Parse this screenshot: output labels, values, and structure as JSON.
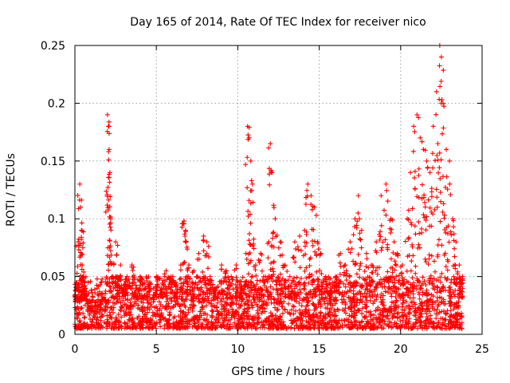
{
  "chart_data": {
    "type": "scatter",
    "title": "Day 165 of 2014, Rate Of TEC Index for receiver nico",
    "xlabel": "GPS time / hours",
    "ylabel": "ROTI / TECUs",
    "xlim": [
      0,
      25
    ],
    "ylim": [
      0,
      0.25
    ],
    "x_ticks": [
      0,
      5,
      10,
      15,
      20,
      25
    ],
    "x_tick_labels": [
      "0",
      "5",
      "10",
      "15",
      "20",
      "25"
    ],
    "y_ticks": [
      0,
      0.05,
      0.1,
      0.15,
      0.2,
      0.25
    ],
    "y_tick_labels": [
      "0",
      "0.05",
      "0.1",
      "0.15",
      "0.2",
      "0.25"
    ],
    "grid": true,
    "marker": "plus",
    "color": "#ff0000",
    "series": [
      {
        "name": "ROTI",
        "x": [
          0.1,
          0.2,
          0.3,
          0.35,
          0.4,
          0.45,
          0.5,
          0.6,
          0.8,
          1.0,
          1.2,
          1.5,
          1.8,
          2.0,
          2.05,
          2.1,
          2.15,
          2.2,
          2.3,
          2.5,
          2.6,
          2.8,
          3.0,
          3.2,
          3.5,
          3.8,
          4.0,
          4.3,
          4.6,
          5.0,
          5.3,
          5.6,
          5.9,
          6.2,
          6.5,
          6.7,
          6.8,
          7.0,
          7.3,
          7.6,
          7.9,
          8.1,
          8.3,
          8.6,
          9.0,
          9.3,
          9.6,
          9.9,
          10.2,
          10.5,
          10.6,
          10.7,
          10.8,
          10.9,
          11.1,
          11.4,
          11.7,
          11.9,
          12.0,
          12.1,
          12.3,
          12.6,
          12.9,
          13.2,
          13.5,
          13.8,
          14.1,
          14.3,
          14.5,
          14.7,
          14.9,
          15.1,
          15.4,
          15.7,
          16.0,
          16.3,
          16.6,
          16.9,
          17.2,
          17.4,
          17.6,
          17.9,
          18.2,
          18.5,
          18.8,
          19.1,
          19.4,
          19.6,
          19.8,
          20.1,
          20.4,
          20.6,
          20.8,
          21.0,
          21.2,
          21.4,
          21.6,
          21.8,
          22.0,
          22.2,
          22.4,
          22.5,
          22.6,
          22.8,
          23.0,
          23.2,
          23.4,
          23.6,
          23.8
        ],
        "y": [
          0.04,
          0.08,
          0.13,
          0.11,
          0.09,
          0.06,
          0.05,
          0.04,
          0.02,
          0.02,
          0.015,
          0.02,
          0.03,
          0.19,
          0.18,
          0.16,
          0.14,
          0.1,
          0.05,
          0.08,
          0.05,
          0.06,
          0.04,
          0.05,
          0.06,
          0.04,
          0.05,
          0.04,
          0.045,
          0.05,
          0.04,
          0.055,
          0.05,
          0.045,
          0.06,
          0.098,
          0.09,
          0.06,
          0.055,
          0.07,
          0.085,
          0.08,
          0.05,
          0.04,
          0.06,
          0.055,
          0.05,
          0.06,
          0.04,
          0.07,
          0.18,
          0.17,
          0.15,
          0.13,
          0.06,
          0.07,
          0.05,
          0.08,
          0.165,
          0.14,
          0.1,
          0.08,
          0.06,
          0.05,
          0.08,
          0.085,
          0.09,
          0.13,
          0.12,
          0.11,
          0.08,
          0.07,
          0.05,
          0.04,
          0.05,
          0.07,
          0.06,
          0.08,
          0.1,
          0.12,
          0.09,
          0.07,
          0.06,
          0.08,
          0.12,
          0.13,
          0.1,
          0.08,
          0.07,
          0.06,
          0.1,
          0.14,
          0.18,
          0.19,
          0.17,
          0.16,
          0.15,
          0.14,
          0.18,
          0.21,
          0.25,
          0.24,
          0.2,
          0.16,
          0.15,
          0.1,
          0.08,
          0.06,
          0.05
        ],
        "baseline_min": 0.005,
        "baseline_max": 0.05
      }
    ]
  }
}
